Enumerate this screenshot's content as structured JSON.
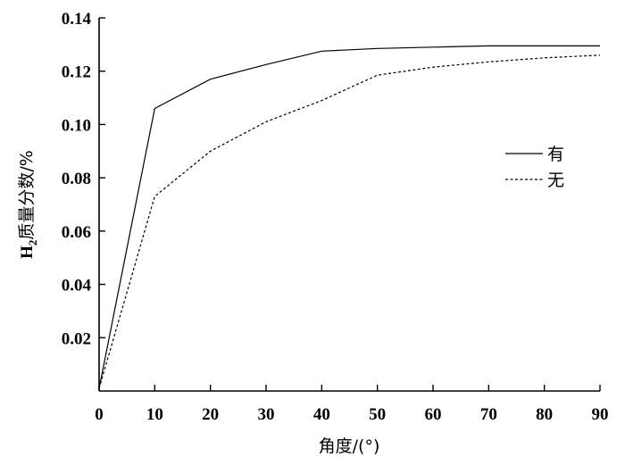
{
  "chart_data": {
    "type": "line",
    "xlabel": "角度/(°)",
    "ylabel": {
      "prefix": "H",
      "subscript": "2",
      "suffix": "质量分数/%"
    },
    "xlim": [
      0,
      90
    ],
    "ylim": [
      0,
      0.14
    ],
    "x_ticks": [
      0,
      10,
      20,
      30,
      40,
      50,
      60,
      70,
      80,
      90
    ],
    "x_tick_labels": [
      "0",
      "10",
      "20",
      "30",
      "40",
      "50",
      "60",
      "70",
      "80",
      "90"
    ],
    "y_ticks": [
      0.02,
      0.04,
      0.06,
      0.08,
      0.1,
      0.12,
      0.14
    ],
    "y_tick_labels": [
      "0.02",
      "0.04",
      "0.06",
      "0.08",
      "0.10",
      "0.12",
      "0.14"
    ],
    "grid": false,
    "legend_position": "right",
    "series": [
      {
        "name": "有",
        "style": "solid",
        "x": [
          0,
          10,
          20,
          30,
          40,
          50,
          60,
          70,
          80,
          90
        ],
        "y": [
          0.001,
          0.106,
          0.117,
          0.1225,
          0.1275,
          0.1285,
          0.129,
          0.1295,
          0.1295,
          0.1295
        ]
      },
      {
        "name": "无",
        "style": "dashed",
        "x": [
          0,
          10,
          20,
          30,
          40,
          50,
          60,
          70,
          80,
          90
        ],
        "y": [
          0.001,
          0.073,
          0.09,
          0.101,
          0.109,
          0.1185,
          0.1215,
          0.1235,
          0.125,
          0.126
        ]
      }
    ]
  }
}
